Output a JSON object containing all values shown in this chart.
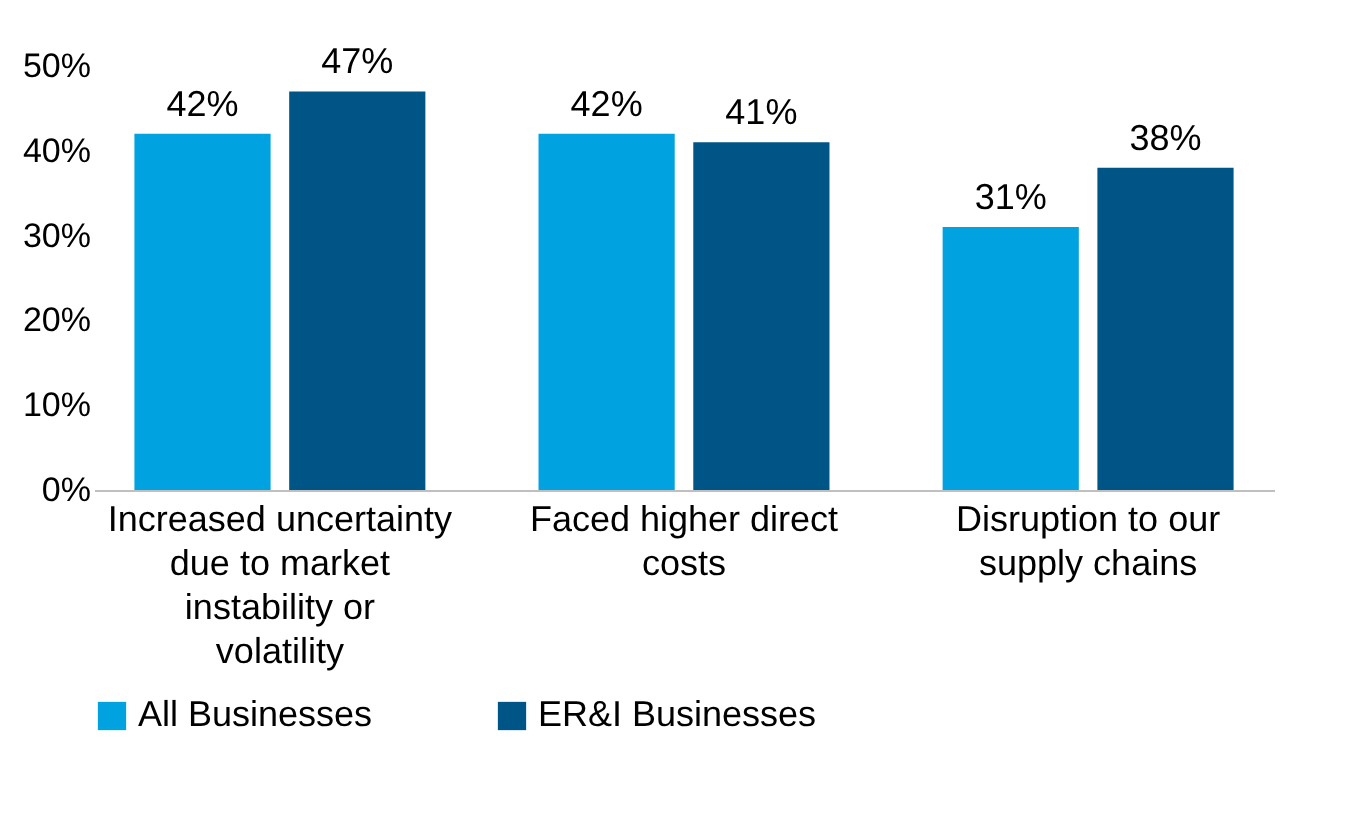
{
  "chart_data": {
    "type": "bar",
    "categories": [
      "Increased uncertainty due to market instability or volatility",
      "Faced higher direct costs",
      "Disruption to our supply chains"
    ],
    "series": [
      {
        "name": "All Businesses",
        "color": "#00a3e0",
        "values": [
          42,
          42,
          31
        ],
        "value_labels": [
          "42%",
          "42%",
          "31%"
        ]
      },
      {
        "name": "ER&I Businesses",
        "color": "#005587",
        "values": [
          47,
          41,
          38
        ],
        "value_labels": [
          "47%",
          "41%",
          "38%"
        ]
      }
    ],
    "ylim": [
      0,
      50
    ],
    "yticks": [
      {
        "value": 0,
        "label": "0%"
      },
      {
        "value": 10,
        "label": "10%"
      },
      {
        "value": 20,
        "label": "20%"
      },
      {
        "value": 30,
        "label": "30%"
      },
      {
        "value": 40,
        "label": "40%"
      },
      {
        "value": 50,
        "label": "50%"
      }
    ],
    "grid": false,
    "legend": "bottom"
  }
}
